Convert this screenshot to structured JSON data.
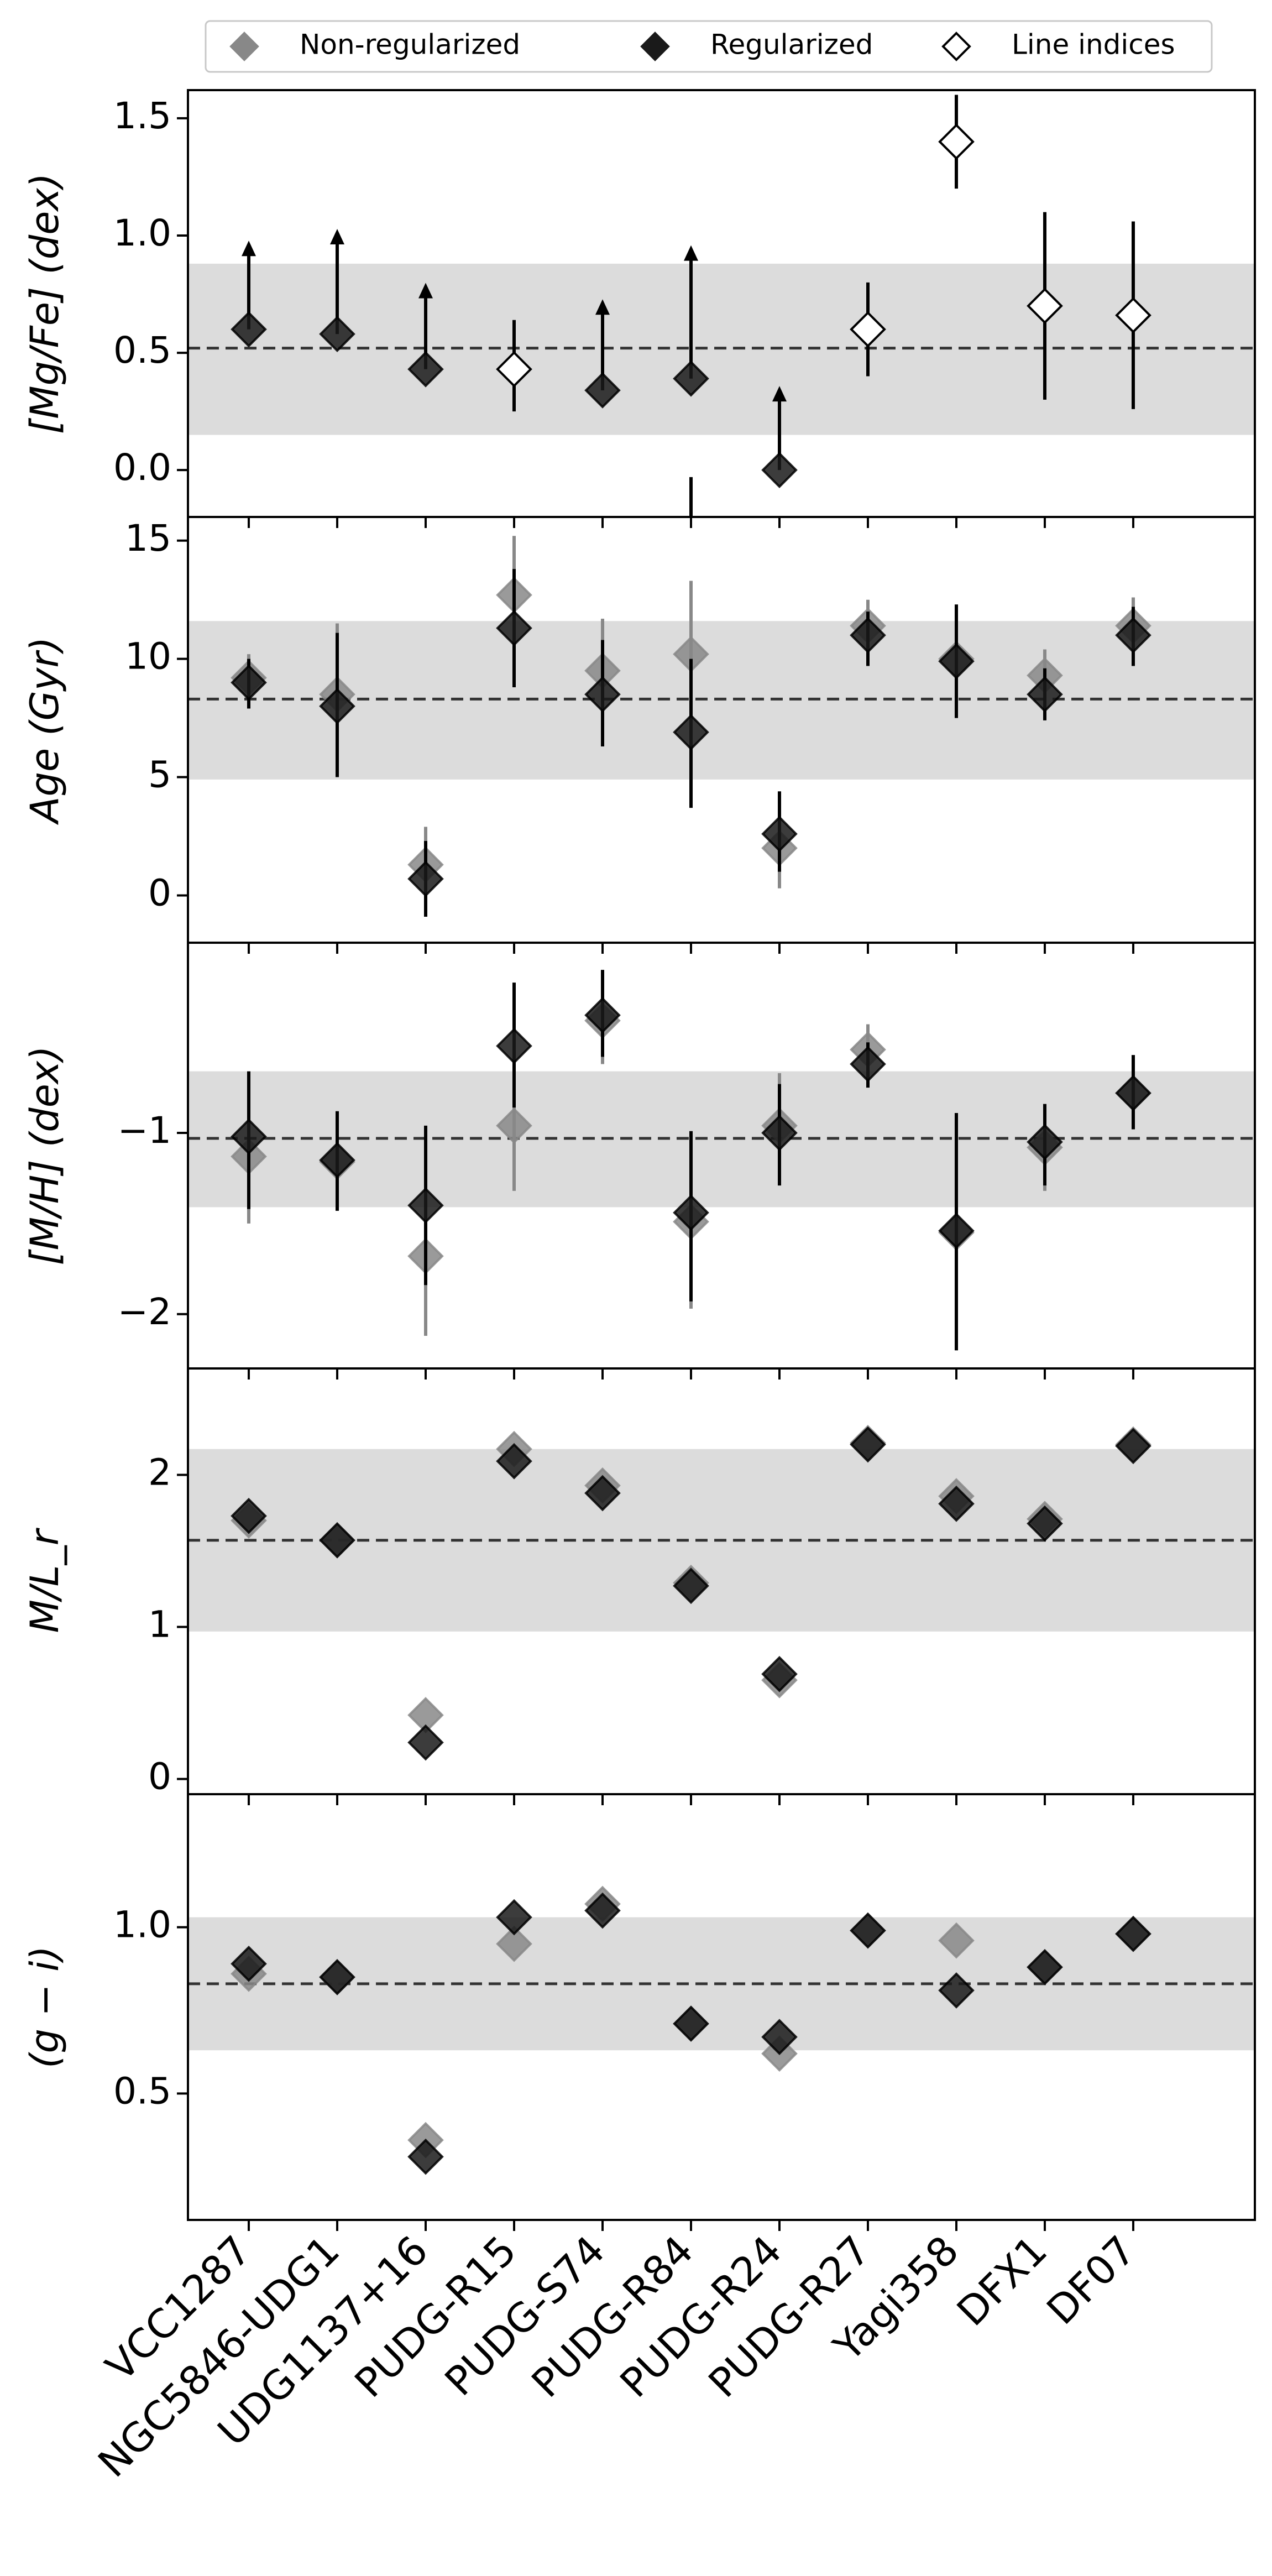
{
  "legend": {
    "items": [
      {
        "label": "Non-regularized",
        "color": "#888888",
        "fill": "#888888"
      },
      {
        "label": "Regularized",
        "color": "#1a1a1a",
        "fill": "#1a1a1a"
      },
      {
        "label": "Line indices",
        "color": "#000000",
        "fill": "#ffffff"
      }
    ]
  },
  "chart_data": {
    "type": "scatter",
    "categories": [
      "VCC1287",
      "NGC5846-UDG1",
      "UDG1137+16",
      "PUDG-R15",
      "PUDG-S74",
      "PUDG-R84",
      "PUDG-R24",
      "PUDG-R27",
      "Yagi358",
      "DFX1",
      "DF07"
    ],
    "panels": [
      {
        "ylabel": "[Mg/Fe] (dex)",
        "ylim": [
          -0.2,
          1.62
        ],
        "yticks": [
          0.0,
          0.5,
          1.0,
          1.5
        ],
        "ytick_labels": [
          "0.0",
          "0.5",
          "1.0",
          "1.5"
        ],
        "mean": 0.52,
        "band": [
          0.15,
          0.88
        ],
        "regularized": [
          0.6,
          0.58,
          0.43,
          null,
          0.34,
          0.39,
          0.0,
          null,
          null,
          null,
          null
        ],
        "regularized_lower_limit_bars": [
          [
            0.6,
            0.95
          ],
          [
            0.58,
            1.0
          ],
          [
            0.43,
            0.77
          ],
          null,
          [
            0.34,
            0.7
          ],
          [
            0.39,
            0.93
          ],
          [
            0.0,
            0.33
          ],
          null,
          null,
          null,
          null
        ],
        "regularized_extra_down_segment": [
          null,
          null,
          null,
          null,
          null,
          [
            -0.2,
            -0.03
          ],
          null,
          null,
          null,
          null,
          null
        ],
        "line_indices": [
          null,
          null,
          null,
          0.43,
          null,
          null,
          null,
          0.6,
          1.4,
          0.7,
          0.66
        ],
        "line_indices_err": [
          null,
          null,
          null,
          [
            0.25,
            0.64
          ],
          null,
          null,
          null,
          [
            0.4,
            0.8
          ],
          [
            1.2,
            1.6
          ],
          [
            0.3,
            1.1
          ],
          [
            0.26,
            1.06
          ]
        ]
      },
      {
        "ylabel": "Age (Gyr)",
        "ylim": [
          -2,
          16
        ],
        "yticks": [
          0,
          5,
          10,
          15
        ],
        "ytick_labels": [
          "0",
          "5",
          "10",
          "15"
        ],
        "mean": 8.3,
        "band": [
          4.9,
          11.6
        ],
        "non_regularized": [
          9.2,
          8.5,
          1.3,
          12.7,
          9.5,
          10.2,
          2.0,
          11.4,
          10.0,
          9.3,
          11.4
        ],
        "non_regularized_err": [
          [
            8.2,
            10.2
          ],
          [
            5.4,
            11.5
          ],
          [
            -0.2,
            2.9
          ],
          [
            10.3,
            15.2
          ],
          [
            7.0,
            11.7
          ],
          [
            6.5,
            13.3
          ],
          [
            0.3,
            3.6
          ],
          [
            10.2,
            12.5
          ],
          [
            8.0,
            12.0
          ],
          [
            8.2,
            10.4
          ],
          [
            10.3,
            12.6
          ]
        ],
        "regularized": [
          9.0,
          8.0,
          0.7,
          11.3,
          8.5,
          6.9,
          2.6,
          11.0,
          9.9,
          8.5,
          11.0
        ],
        "regularized_err": [
          [
            7.9,
            10.0
          ],
          [
            5.0,
            11.1
          ],
          [
            -0.9,
            2.3
          ],
          [
            8.8,
            13.8
          ],
          [
            6.3,
            10.8
          ],
          [
            3.7,
            10.0
          ],
          [
            1.0,
            4.4
          ],
          [
            9.7,
            12.0
          ],
          [
            7.5,
            12.3
          ],
          [
            7.4,
            9.6
          ],
          [
            9.7,
            12.2
          ]
        ]
      },
      {
        "ylabel": "[M/H] (dex)",
        "ylim": [
          -2.3,
          0.05
        ],
        "yticks": [
          -2,
          -1
        ],
        "ytick_labels": [
          "−2",
          "−1"
        ],
        "mean": -1.03,
        "band": [
          -1.41,
          -0.66
        ],
        "non_regularized": [
          -1.13,
          -1.16,
          -1.68,
          -0.96,
          -0.38,
          -1.49,
          -0.96,
          -0.54,
          -1.55,
          -1.08,
          -0.78
        ],
        "non_regularized_err": [
          [
            -1.5,
            -0.78
          ],
          [
            -1.43,
            -0.89
          ],
          [
            -2.12,
            -1.28
          ],
          [
            -1.32,
            -0.57
          ],
          [
            -0.62,
            -0.15
          ],
          [
            -1.97,
            -1.0
          ],
          [
            -1.22,
            -0.67
          ],
          [
            -0.72,
            -0.4
          ],
          [
            -2.2,
            -0.9
          ],
          [
            -1.32,
            -0.85
          ],
          [
            -0.95,
            -0.6
          ]
        ],
        "regularized": [
          -1.02,
          -1.15,
          -1.4,
          -0.52,
          -0.35,
          -1.44,
          -1.0,
          -0.62,
          -1.54,
          -1.05,
          -0.78
        ],
        "regularized_err": [
          [
            -1.42,
            -0.66
          ],
          [
            -1.43,
            -0.88
          ],
          [
            -1.84,
            -0.96
          ],
          [
            -0.86,
            -0.17
          ],
          [
            -0.58,
            -0.1
          ],
          [
            -1.93,
            -0.99
          ],
          [
            -1.29,
            -0.73
          ],
          [
            -0.75,
            -0.5
          ],
          [
            -2.2,
            -0.89
          ],
          [
            -1.29,
            -0.84
          ],
          [
            -0.98,
            -0.57
          ]
        ]
      },
      {
        "ylabel": "M/L_r",
        "ylim": [
          -0.1,
          2.7
        ],
        "yticks": [
          0,
          1,
          2
        ],
        "ytick_labels": [
          "0",
          "1",
          "2"
        ],
        "mean": 1.57,
        "band": [
          0.97,
          2.17
        ],
        "non_regularized": [
          1.7,
          1.57,
          0.42,
          2.17,
          1.93,
          1.29,
          0.65,
          2.21,
          1.86,
          1.71,
          2.2
        ],
        "regularized": [
          1.73,
          1.57,
          0.24,
          2.09,
          1.88,
          1.27,
          0.69,
          2.2,
          1.81,
          1.68,
          2.19
        ]
      },
      {
        "ylabel": "(g − i)",
        "ylim": [
          0.12,
          1.4
        ],
        "yticks": [
          0.5,
          1.0
        ],
        "ytick_labels": [
          "0.5",
          "1.0"
        ],
        "mean": 0.83,
        "band": [
          0.63,
          1.03
        ],
        "non_regularized": [
          0.86,
          0.85,
          0.36,
          0.95,
          1.07,
          0.71,
          0.62,
          0.99,
          0.96,
          0.88,
          0.98
        ],
        "regularized": [
          0.89,
          0.85,
          0.31,
          1.03,
          1.05,
          0.71,
          0.67,
          0.99,
          0.81,
          0.88,
          0.98
        ]
      }
    ],
    "colors": {
      "non_regularized": "#888888",
      "regularized": "#1a1a1a",
      "band": "#dcdcdc",
      "mean_line": "#333333"
    }
  }
}
